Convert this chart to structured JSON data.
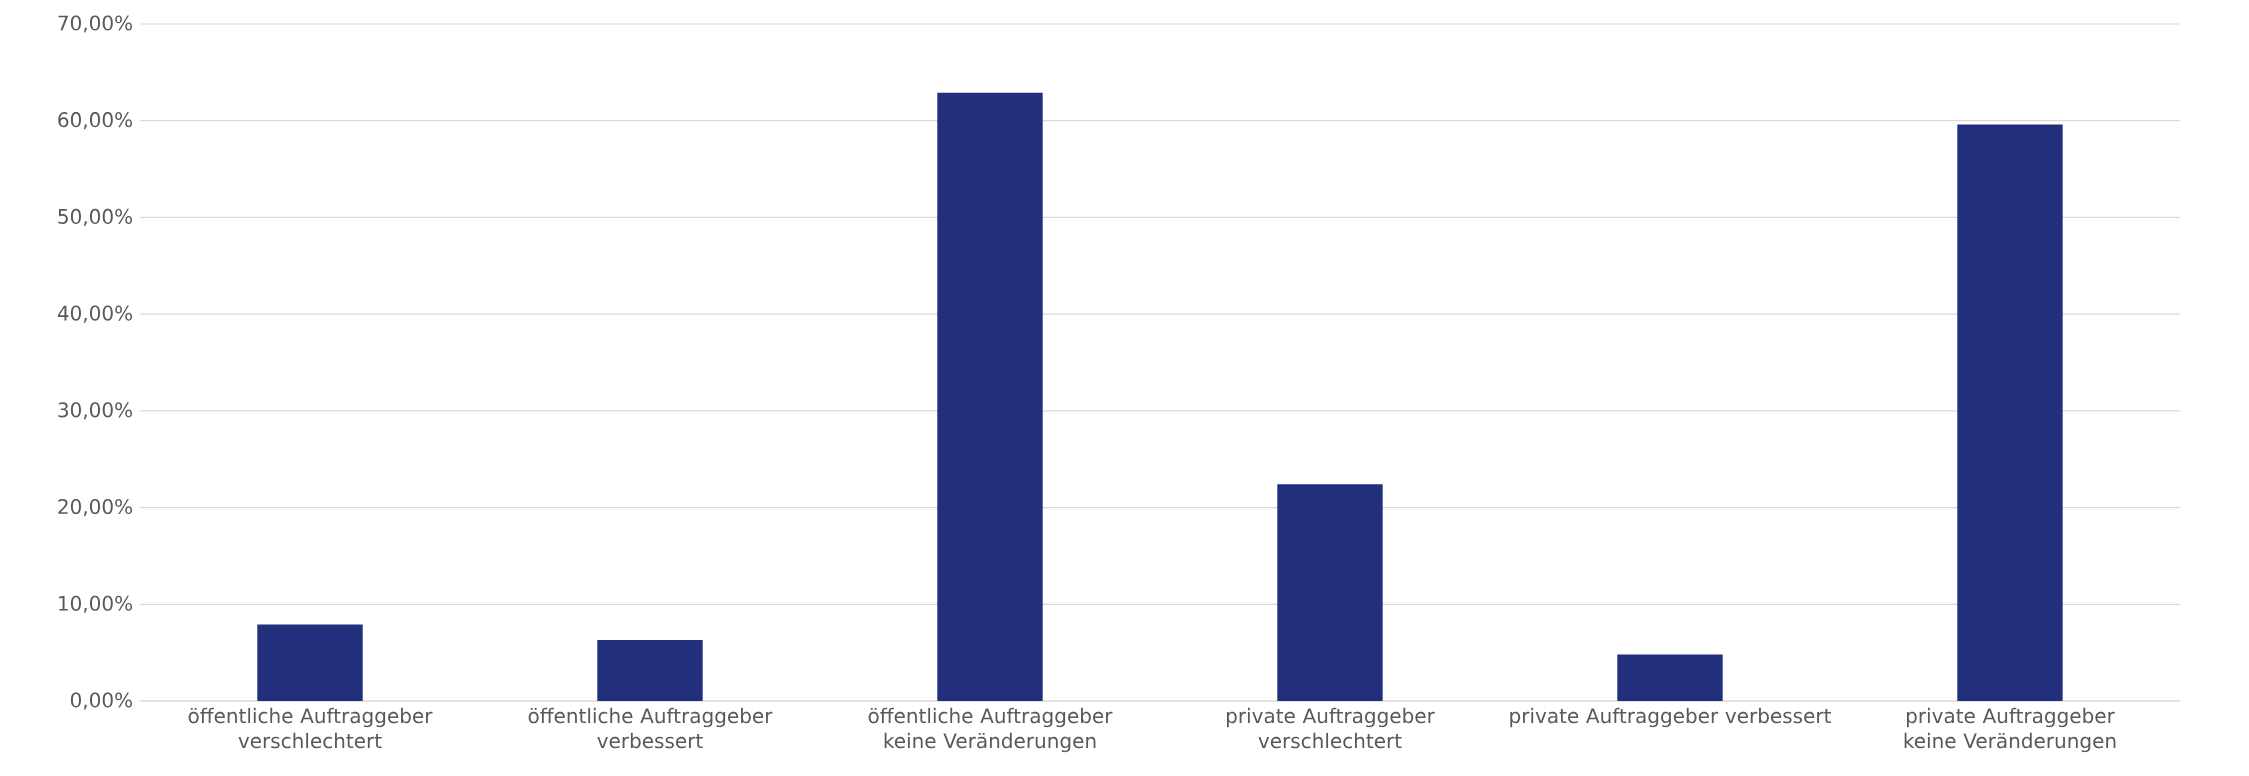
{
  "chart_data": {
    "type": "bar",
    "categories": [
      "öffentliche Auftraggeber verschlechtert",
      "öffentliche Auftraggeber verbessert",
      "öffentliche Auftraggeber keine Veränderungen",
      "private Auftraggeber verschlechtert",
      "private Auftraggeber verbessert",
      "private Auftraggeber keine Veränderungen"
    ],
    "values": [
      7.9,
      6.3,
      62.9,
      22.4,
      4.8,
      59.6
    ],
    "color": "#222f7c",
    "ylim": [
      0,
      70
    ],
    "yticks": [
      {
        "value": 0,
        "label": "0,00%"
      },
      {
        "value": 10,
        "label": "10,00%"
      },
      {
        "value": 20,
        "label": "20,00%"
      },
      {
        "value": 30,
        "label": "30,00%"
      },
      {
        "value": 40,
        "label": "40,00%"
      },
      {
        "value": 50,
        "label": "50,00%"
      },
      {
        "value": 60,
        "label": "60,00%"
      },
      {
        "value": 70,
        "label": "70,00%"
      }
    ],
    "grid": "y"
  }
}
